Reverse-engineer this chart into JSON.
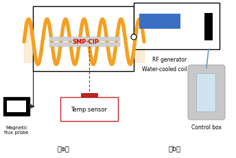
{
  "bg_color": "#ffffff",
  "label_a": "（a）",
  "label_b": "（b）",
  "coil_color": "#f5a020",
  "smp_cip_color": "#dd0000",
  "smp_cip_label": "SMP·CIP",
  "rf_label": "RF generator",
  "control_label": "Control box",
  "wc_label": "Water-cooled coil",
  "temp_label": "Temp sensor",
  "mag_label": "Magnetic\nflux probe",
  "blue_rect_color": "#3a6fc4",
  "control_box_fill": "#c8c8c8",
  "control_box_inner": "#d0e4f0",
  "cb_line_color": "#6699bb"
}
